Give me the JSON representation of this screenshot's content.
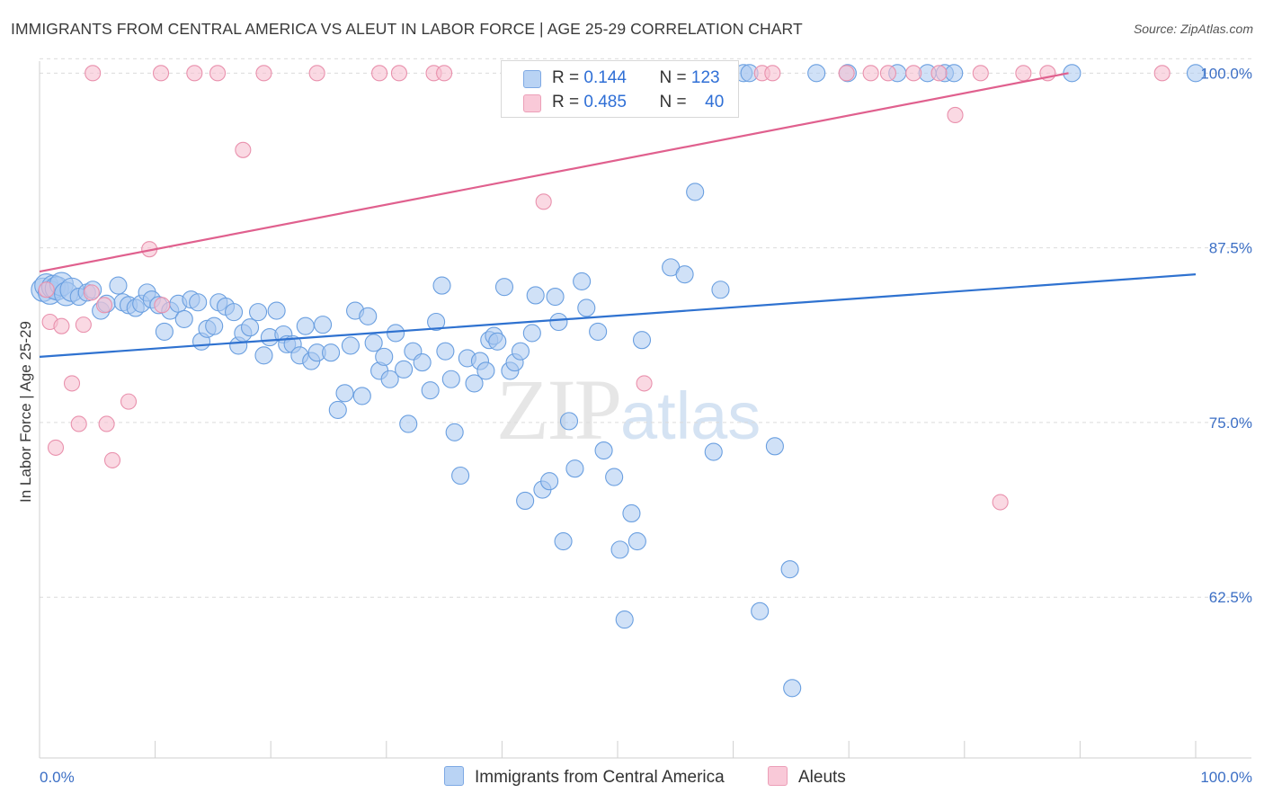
{
  "header": {
    "title": "IMMIGRANTS FROM CENTRAL AMERICA VS ALEUT IN LABOR FORCE | AGE 25-29 CORRELATION CHART",
    "source": "Source: ZipAtlas.com"
  },
  "watermark": {
    "zip": "ZIP",
    "atlas": "atlas"
  },
  "legend": {
    "rows": [
      {
        "r_label": "R =",
        "r_value": "0.144",
        "n_label": "N =",
        "n_value": "123"
      },
      {
        "r_label": "R =",
        "r_value": "0.485",
        "n_label": "N =",
        "n_value": "40"
      }
    ]
  },
  "bottom_legend": {
    "series1": "Immigrants from Central America",
    "series2": "Aleuts"
  },
  "colors": {
    "blue_fill": "#a9c8f0",
    "blue_stroke": "#6a9fe0",
    "blue_line": "#2f72d0",
    "pink_fill": "#f6bfd0",
    "pink_stroke": "#e991ad",
    "pink_line": "#e0608e",
    "grid": "#dcdcdc",
    "tick_text": "#3c6fc5"
  },
  "chart_data": {
    "type": "scatter",
    "title": "IMMIGRANTS FROM CENTRAL AMERICA VS ALEUT IN LABOR FORCE | AGE 25-29 CORRELATION CHART",
    "xlabel": "",
    "ylabel": "In Labor Force | Age 25-29",
    "xlim": [
      0,
      100
    ],
    "ylim": [
      51,
      101.5
    ],
    "x_tick_labels": [
      "0.0%",
      "100.0%"
    ],
    "y_ticks": [
      62.5,
      75.0,
      87.5,
      100.0
    ],
    "y_tick_labels": [
      "62.5%",
      "75.0%",
      "87.5%",
      "100.0%"
    ],
    "grid": true,
    "legend_position": "top-center",
    "series": [
      {
        "name": "Immigrants from Central America",
        "R": 0.144,
        "N": 123,
        "trend": {
          "x0": 0,
          "y0": 79.7,
          "x1": 100,
          "y1": 85.6
        },
        "points": [
          [
            0.3,
            84.5
          ],
          [
            0.6,
            84.8
          ],
          [
            0.9,
            84.3
          ],
          [
            1.2,
            84.7
          ],
          [
            1.5,
            84.6
          ],
          [
            1.9,
            84.9
          ],
          [
            2.3,
            84.2
          ],
          [
            2.8,
            84.5
          ],
          [
            3.4,
            84.0
          ],
          [
            4.1,
            84.3
          ],
          [
            4.6,
            84.5
          ],
          [
            5.3,
            83.0
          ],
          [
            5.8,
            83.5
          ],
          [
            6.8,
            84.8
          ],
          [
            7.2,
            83.6
          ],
          [
            7.7,
            83.4
          ],
          [
            8.3,
            83.2
          ],
          [
            8.8,
            83.5
          ],
          [
            9.3,
            84.3
          ],
          [
            9.7,
            83.8
          ],
          [
            10.3,
            83.4
          ],
          [
            10.8,
            81.5
          ],
          [
            11.3,
            83.0
          ],
          [
            12.0,
            83.5
          ],
          [
            12.5,
            82.4
          ],
          [
            13.1,
            83.8
          ],
          [
            13.7,
            83.6
          ],
          [
            14.0,
            80.8
          ],
          [
            14.5,
            81.7
          ],
          [
            15.1,
            81.9
          ],
          [
            15.5,
            83.6
          ],
          [
            16.1,
            83.3
          ],
          [
            16.8,
            82.9
          ],
          [
            17.2,
            80.5
          ],
          [
            17.6,
            81.4
          ],
          [
            18.2,
            81.8
          ],
          [
            18.9,
            82.9
          ],
          [
            19.4,
            79.8
          ],
          [
            19.9,
            81.1
          ],
          [
            20.5,
            83.0
          ],
          [
            21.1,
            81.3
          ],
          [
            21.4,
            80.6
          ],
          [
            21.9,
            80.6
          ],
          [
            22.5,
            79.8
          ],
          [
            23.0,
            81.9
          ],
          [
            23.5,
            79.4
          ],
          [
            24.0,
            80.0
          ],
          [
            24.5,
            82.0
          ],
          [
            25.2,
            80.0
          ],
          [
            25.8,
            75.9
          ],
          [
            26.4,
            77.1
          ],
          [
            26.9,
            80.5
          ],
          [
            27.3,
            83.0
          ],
          [
            27.9,
            76.9
          ],
          [
            28.4,
            82.6
          ],
          [
            28.9,
            80.7
          ],
          [
            29.4,
            78.7
          ],
          [
            29.8,
            79.7
          ],
          [
            30.3,
            78.1
          ],
          [
            30.8,
            81.4
          ],
          [
            31.5,
            78.8
          ],
          [
            31.9,
            74.9
          ],
          [
            32.3,
            80.1
          ],
          [
            33.1,
            79.3
          ],
          [
            33.8,
            77.3
          ],
          [
            34.3,
            82.2
          ],
          [
            34.8,
            84.8
          ],
          [
            35.1,
            80.1
          ],
          [
            35.6,
            78.1
          ],
          [
            35.9,
            74.3
          ],
          [
            36.4,
            71.2
          ],
          [
            37.0,
            79.6
          ],
          [
            37.6,
            77.8
          ],
          [
            38.1,
            79.4
          ],
          [
            38.6,
            78.7
          ],
          [
            38.9,
            80.9
          ],
          [
            39.3,
            81.2
          ],
          [
            39.6,
            80.8
          ],
          [
            40.2,
            84.7
          ],
          [
            40.7,
            78.7
          ],
          [
            41.1,
            79.3
          ],
          [
            41.6,
            80.1
          ],
          [
            42.0,
            69.4
          ],
          [
            42.6,
            81.4
          ],
          [
            42.9,
            84.1
          ],
          [
            43.5,
            70.2
          ],
          [
            44.1,
            70.8
          ],
          [
            44.6,
            84.0
          ],
          [
            44.9,
            82.2
          ],
          [
            45.3,
            66.5
          ],
          [
            45.8,
            75.1
          ],
          [
            46.3,
            71.7
          ],
          [
            46.9,
            85.1
          ],
          [
            47.3,
            83.2
          ],
          [
            48.3,
            81.5
          ],
          [
            48.8,
            73.0
          ],
          [
            49.7,
            71.1
          ],
          [
            50.2,
            65.9
          ],
          [
            50.6,
            60.9
          ],
          [
            51.2,
            68.5
          ],
          [
            51.7,
            66.5
          ],
          [
            52.1,
            80.9
          ],
          [
            53.4,
            100.0
          ],
          [
            54.6,
            86.1
          ],
          [
            55.8,
            85.6
          ],
          [
            56.7,
            91.5
          ],
          [
            58.3,
            72.9
          ],
          [
            58.9,
            84.5
          ],
          [
            60.9,
            100.0
          ],
          [
            61.4,
            100.0
          ],
          [
            62.3,
            61.5
          ],
          [
            63.6,
            73.3
          ],
          [
            64.9,
            64.5
          ],
          [
            65.1,
            56.0
          ],
          [
            67.2,
            100.0
          ],
          [
            69.9,
            100.0
          ],
          [
            74.2,
            100.0
          ],
          [
            76.8,
            100.0
          ],
          [
            78.3,
            100.0
          ],
          [
            79.1,
            100.0
          ],
          [
            89.3,
            100.0
          ],
          [
            100.0,
            100.0
          ]
        ]
      },
      {
        "name": "Aleuts",
        "R": 0.485,
        "N": 40,
        "trend": {
          "x0": 0,
          "y0": 85.8,
          "x1": 89.0,
          "y1": 100.0
        },
        "points": [
          [
            0.6,
            84.5
          ],
          [
            0.9,
            82.2
          ],
          [
            1.4,
            73.2
          ],
          [
            1.9,
            81.9
          ],
          [
            2.8,
            77.8
          ],
          [
            3.4,
            74.9
          ],
          [
            3.8,
            82.0
          ],
          [
            4.5,
            84.3
          ],
          [
            5.6,
            83.4
          ],
          [
            5.8,
            74.9
          ],
          [
            6.3,
            72.3
          ],
          [
            7.7,
            76.5
          ],
          [
            9.5,
            87.4
          ],
          [
            10.6,
            83.4
          ],
          [
            4.6,
            100.0
          ],
          [
            10.5,
            100.0
          ],
          [
            13.4,
            100.0
          ],
          [
            15.4,
            100.0
          ],
          [
            17.6,
            94.5
          ],
          [
            19.4,
            100.0
          ],
          [
            24.0,
            100.0
          ],
          [
            29.4,
            100.0
          ],
          [
            31.1,
            100.0
          ],
          [
            34.1,
            100.0
          ],
          [
            35.0,
            100.0
          ],
          [
            43.6,
            90.8
          ],
          [
            52.3,
            77.8
          ],
          [
            62.5,
            100.0
          ],
          [
            63.4,
            100.0
          ],
          [
            69.8,
            100.0
          ],
          [
            71.9,
            100.0
          ],
          [
            73.4,
            100.0
          ],
          [
            75.6,
            100.0
          ],
          [
            77.8,
            100.0
          ],
          [
            79.2,
            97.0
          ],
          [
            81.4,
            100.0
          ],
          [
            83.1,
            69.3
          ],
          [
            85.1,
            100.0
          ],
          [
            87.2,
            100.0
          ],
          [
            97.1,
            100.0
          ]
        ]
      }
    ]
  }
}
